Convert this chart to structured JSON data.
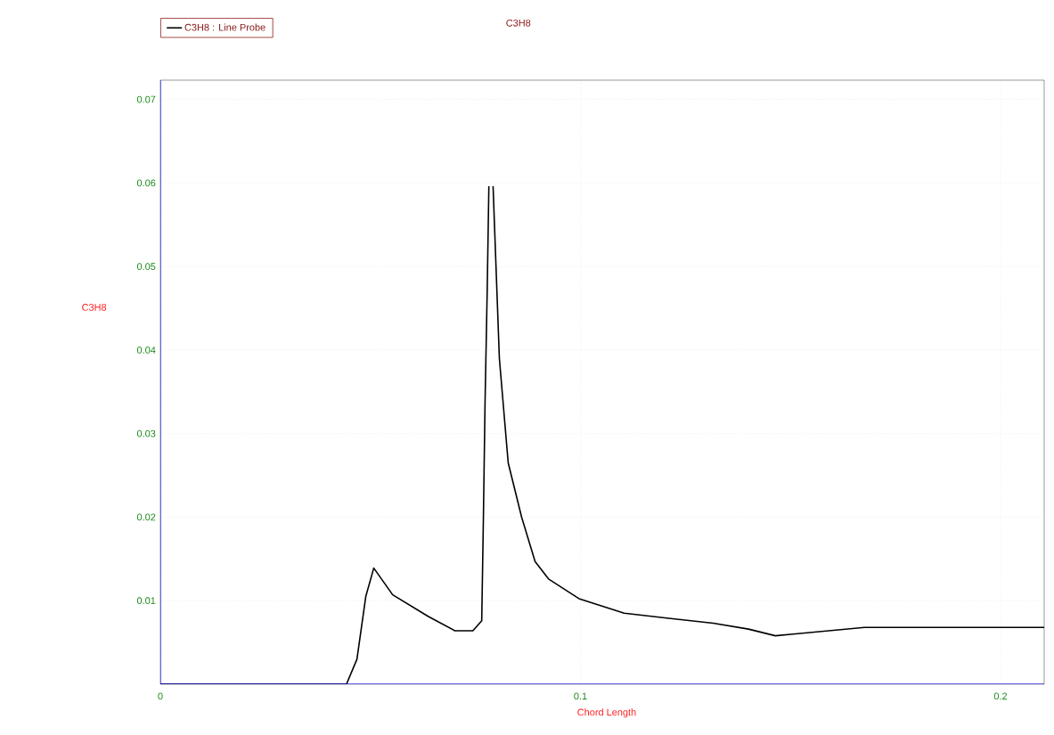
{
  "chart_data": {
    "type": "line",
    "title": "C3H8",
    "xlabel": "Chord Length",
    "ylabel": "C3H8",
    "xlim": [
      0,
      0.2104
    ],
    "ylim": [
      0,
      0.0723
    ],
    "xticks": [
      0,
      0.1,
      0.2
    ],
    "yticks": [
      0.01,
      0.02,
      0.03,
      0.04,
      0.05,
      0.06,
      0.07
    ],
    "grid": true,
    "legend": "top left",
    "line_style": "solid",
    "marker": "none",
    "series": [
      {
        "name": "C3H8 : Line Probe",
        "color": "#000000",
        "x": [
          0,
          0.0443,
          0.0468,
          0.0489,
          0.0508,
          0.0553,
          0.0638,
          0.0701,
          0.0744,
          0.0765,
          0.0769,
          0.0773,
          0.0778,
          0.0782,
          0.0784,
          0.0788,
          0.0792,
          0.0807,
          0.0828,
          0.086,
          0.0892,
          0.0924,
          0.0998,
          0.1104,
          0.121,
          0.1316,
          0.14,
          0.1464,
          0.1506,
          0.1591,
          0.1676,
          0.2104
        ],
        "values": [
          0,
          0,
          0.003,
          0.0105,
          0.0139,
          0.0107,
          0.0081,
          0.0064,
          0.0064,
          0.0076,
          0.02,
          0.034,
          0.047,
          0.0596,
          null,
          null,
          0.0596,
          0.039,
          0.0265,
          0.02,
          0.0147,
          0.0126,
          0.0102,
          0.0085,
          0.0079,
          0.0073,
          0.0066,
          0.0058,
          0.006,
          0.0064,
          0.0068,
          0.0068
        ]
      }
    ]
  }
}
